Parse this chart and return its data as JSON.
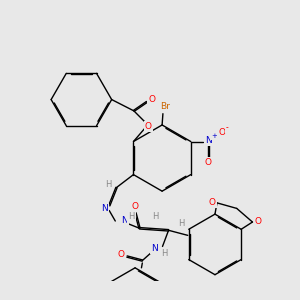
{
  "bg_color": "#e8e8e8",
  "atom_colors": {
    "O": "#ff0000",
    "N": "#0000cc",
    "Br": "#cc6600",
    "H": "#888888",
    "C": "#000000"
  }
}
